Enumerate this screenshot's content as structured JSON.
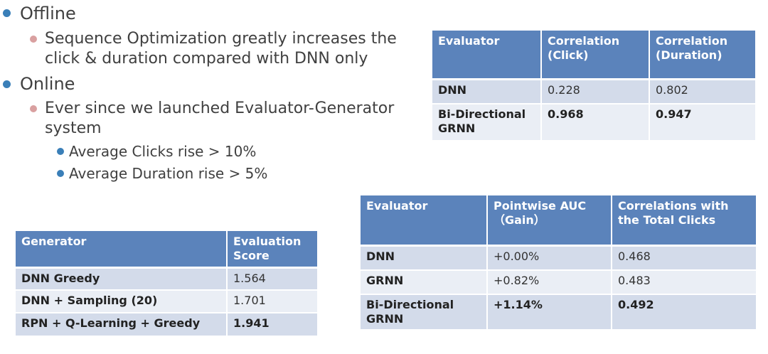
{
  "bullets": {
    "offline": "Offline",
    "offline_sub": [
      "Sequence Optimization greatly increases the",
      "click & duration compared with DNN only"
    ],
    "online": "Online",
    "online_sub": [
      "Ever since we launched Evaluator-Generator",
      "system"
    ],
    "online_sub_items": [
      "Average Clicks rise >  10%",
      "Average Duration rise > 5%"
    ]
  },
  "colors": {
    "level1_dot": "#3a7fb8",
    "level2_dot": "#d9a0a0",
    "level3_dot": "#3a7fb8",
    "header_bg": "#5b83bb",
    "row_dark": "#d3dbea",
    "row_light": "#eaeef5"
  },
  "table_evaluator_corr": {
    "headers": [
      "Evaluator",
      "Correlation (Click)",
      "Correlation (Duration)"
    ],
    "rows": [
      [
        "DNN",
        "0.228",
        "0.802"
      ],
      [
        "Bi-Directional GRNN",
        "0.968",
        "0.947"
      ]
    ]
  },
  "table_generator": {
    "headers": [
      "Generator",
      "Evaluation Score"
    ],
    "rows": [
      [
        "DNN Greedy",
        "1.564"
      ],
      [
        "DNN + Sampling (20)",
        "1.701"
      ],
      [
        "RPN + Q-Learning + Greedy",
        "1.941"
      ]
    ]
  },
  "table_evaluator_auc": {
    "headers": [
      "Evaluator",
      "Pointwise AUC（Gain）",
      "Correlations with the Total Clicks"
    ],
    "rows": [
      [
        "DNN",
        "+0.00%",
        "0.468"
      ],
      [
        "GRNN",
        "+0.82%",
        "0.483"
      ],
      [
        "Bi-Directional GRNN",
        "+1.14%",
        "0.492"
      ]
    ]
  }
}
